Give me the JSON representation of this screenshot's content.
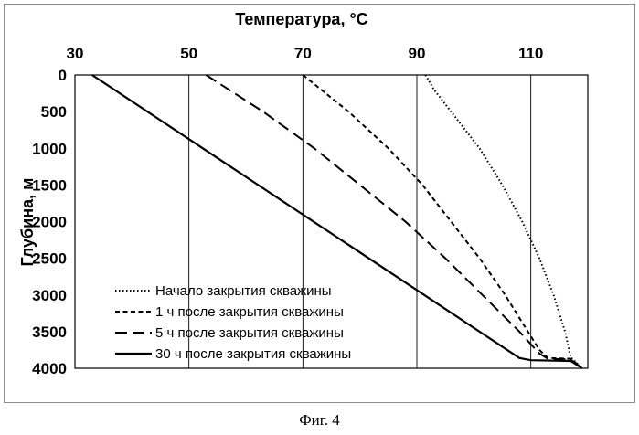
{
  "chart_data": {
    "type": "line",
    "xlabel": "Температура, °C",
    "ylabel": "Глубина, м",
    "xlim": [
      30,
      120
    ],
    "ylim": [
      0,
      4000
    ],
    "y_inverted": true,
    "x_axis_position": "top",
    "x_ticks": [
      "30",
      "50",
      "70",
      "90",
      "110"
    ],
    "y_ticks": [
      "0",
      "500",
      "1000",
      "1500",
      "2000",
      "2500",
      "3000",
      "3500",
      "4000"
    ],
    "grid": "vertical",
    "legend_position": "bottom-left",
    "series": [
      {
        "name": "Начало закрытия скважины",
        "style": "dotted",
        "points": [
          [
            91.5,
            0
          ],
          [
            93,
            200
          ],
          [
            96,
            500
          ],
          [
            101,
            1000
          ],
          [
            105,
            1500
          ],
          [
            108.5,
            2000
          ],
          [
            111.5,
            2500
          ],
          [
            114,
            3000
          ],
          [
            116,
            3500
          ],
          [
            117,
            3850
          ],
          [
            119,
            4000
          ]
        ]
      },
      {
        "name": "1 ч после закрытия скважины",
        "style": "short-dash",
        "points": [
          [
            70,
            0
          ],
          [
            78,
            500
          ],
          [
            85,
            1000
          ],
          [
            91,
            1500
          ],
          [
            96,
            2000
          ],
          [
            101,
            2500
          ],
          [
            105.5,
            3000
          ],
          [
            109.5,
            3500
          ],
          [
            111.5,
            3750
          ],
          [
            113,
            3860
          ],
          [
            117,
            3870
          ],
          [
            119,
            4000
          ]
        ]
      },
      {
        "name": "5 ч после закрытия скважины",
        "style": "long-dash",
        "points": [
          [
            53,
            0
          ],
          [
            63,
            500
          ],
          [
            72,
            1000
          ],
          [
            80,
            1500
          ],
          [
            88,
            2000
          ],
          [
            95,
            2500
          ],
          [
            101.5,
            3000
          ],
          [
            108,
            3500
          ],
          [
            111.5,
            3800
          ],
          [
            113,
            3870
          ],
          [
            117,
            3880
          ],
          [
            119,
            4000
          ]
        ]
      },
      {
        "name": "30 ч после закрытия скважины",
        "style": "solid",
        "points": [
          [
            33,
            0
          ],
          [
            108,
            3860
          ],
          [
            110,
            3890
          ],
          [
            117,
            3900
          ],
          [
            119,
            4000
          ]
        ]
      }
    ]
  },
  "caption": "Фиг. 4",
  "colors": {
    "line": "#000000",
    "frame": "#8c8c8c"
  }
}
